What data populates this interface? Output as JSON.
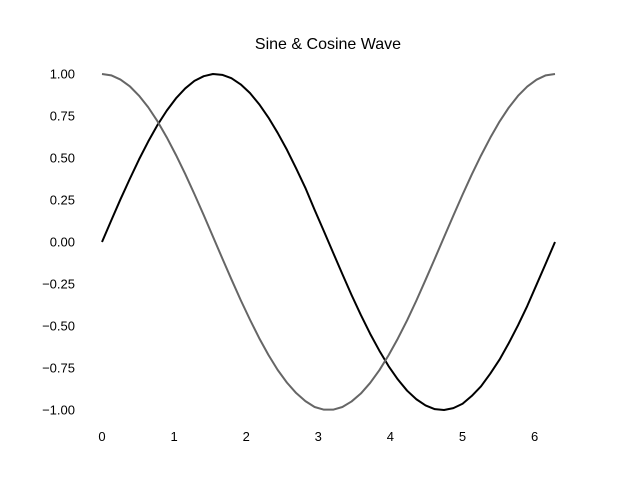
{
  "chart_data": {
    "type": "line",
    "title": "Sine & Cosine Wave",
    "xlabel": "",
    "ylabel": "",
    "xlim": [
      0,
      6.283
    ],
    "ylim": [
      -1.0,
      1.0
    ],
    "grid": false,
    "x_ticks": [
      0,
      1,
      2,
      3,
      4,
      5,
      6
    ],
    "x_tick_labels": [
      "0",
      "1",
      "2",
      "3",
      "4",
      "5",
      "6"
    ],
    "y_ticks": [
      1.0,
      0.75,
      0.5,
      0.25,
      0.0,
      -0.25,
      -0.5,
      -0.75,
      -1.0
    ],
    "y_tick_labels": [
      "1.00",
      "0.75",
      "0.50",
      "0.25",
      "0.00",
      "−0.25",
      "−0.50",
      "−0.75",
      "−1.00"
    ],
    "x": [
      0.0,
      0.128,
      0.256,
      0.385,
      0.513,
      0.641,
      0.769,
      0.898,
      1.026,
      1.154,
      1.282,
      1.411,
      1.539,
      1.667,
      1.795,
      1.924,
      2.052,
      2.18,
      2.308,
      2.436,
      2.565,
      2.693,
      2.821,
      2.949,
      3.078,
      3.206,
      3.334,
      3.462,
      3.59,
      3.719,
      3.847,
      3.975,
      4.103,
      4.232,
      4.36,
      4.488,
      4.616,
      4.744,
      4.873,
      5.001,
      5.129,
      5.257,
      5.386,
      5.514,
      5.642,
      5.77,
      5.898,
      6.027,
      6.155,
      6.283
    ],
    "series": [
      {
        "color": "#000000",
        "values": [
          0.0,
          0.128,
          0.254,
          0.375,
          0.491,
          0.598,
          0.696,
          0.782,
          0.855,
          0.914,
          0.959,
          0.987,
          1.0,
          0.995,
          0.975,
          0.938,
          0.887,
          0.82,
          0.741,
          0.65,
          0.549,
          0.438,
          0.322,
          0.191,
          0.064,
          -0.064,
          -0.191,
          -0.316,
          -0.434,
          -0.546,
          -0.647,
          -0.739,
          -0.818,
          -0.885,
          -0.936,
          -0.973,
          -0.995,
          -1.0,
          -0.989,
          -0.963,
          -0.916,
          -0.859,
          -0.783,
          -0.7,
          -0.602,
          -0.496,
          -0.381,
          -0.254,
          -0.128,
          0.0
        ]
      },
      {
        "color": "#666666",
        "values": [
          1.0,
          0.992,
          0.967,
          0.927,
          0.871,
          0.802,
          0.719,
          0.623,
          0.518,
          0.405,
          0.285,
          0.16,
          0.032,
          -0.096,
          -0.222,
          -0.346,
          -0.462,
          -0.572,
          -0.672,
          -0.761,
          -0.837,
          -0.899,
          -0.947,
          -0.982,
          -0.998,
          -0.998,
          -0.982,
          -0.949,
          -0.902,
          -0.839,
          -0.763,
          -0.674,
          -0.575,
          -0.466,
          -0.349,
          -0.225,
          -0.099,
          0.029,
          0.157,
          0.282,
          0.402,
          0.515,
          0.621,
          0.717,
          0.8,
          0.87,
          0.925,
          0.966,
          0.992,
          1.0
        ]
      }
    ]
  }
}
